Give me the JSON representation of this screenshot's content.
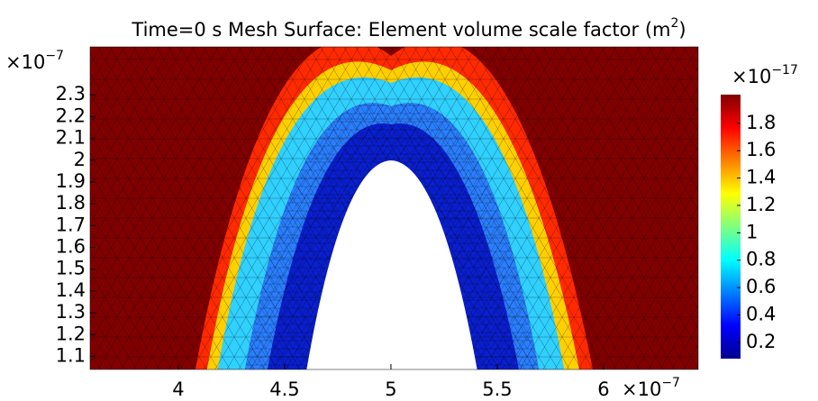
{
  "chart_data": {
    "type": "surface",
    "title": "Time=0 s  Mesh  Surface: Element volume scale factor (m",
    "title_superscript": "2",
    "title_end": ")",
    "xlim": [
      3.585,
      6.445
    ],
    "xticks": [
      4,
      4.5,
      5,
      5.5,
      6
    ],
    "x_multiplier": "×10",
    "x_exponent": "−7",
    "ylim": [
      1.04,
      2.52
    ],
    "yticks": [
      1.1,
      1.2,
      1.3,
      1.4,
      1.5,
      1.6,
      1.7,
      1.8,
      1.9,
      2,
      2.1,
      2.2,
      2.3
    ],
    "y_multiplier": "×10",
    "y_exponent": "−7",
    "colorbar": {
      "clim": [
        0.08,
        2.01
      ],
      "ticks": [
        0.2,
        0.4,
        0.6,
        0.8,
        1,
        1.2,
        1.4,
        1.6,
        1.8
      ],
      "multiplier": "×10",
      "exponent": "−17",
      "colormap": "jet"
    }
  }
}
